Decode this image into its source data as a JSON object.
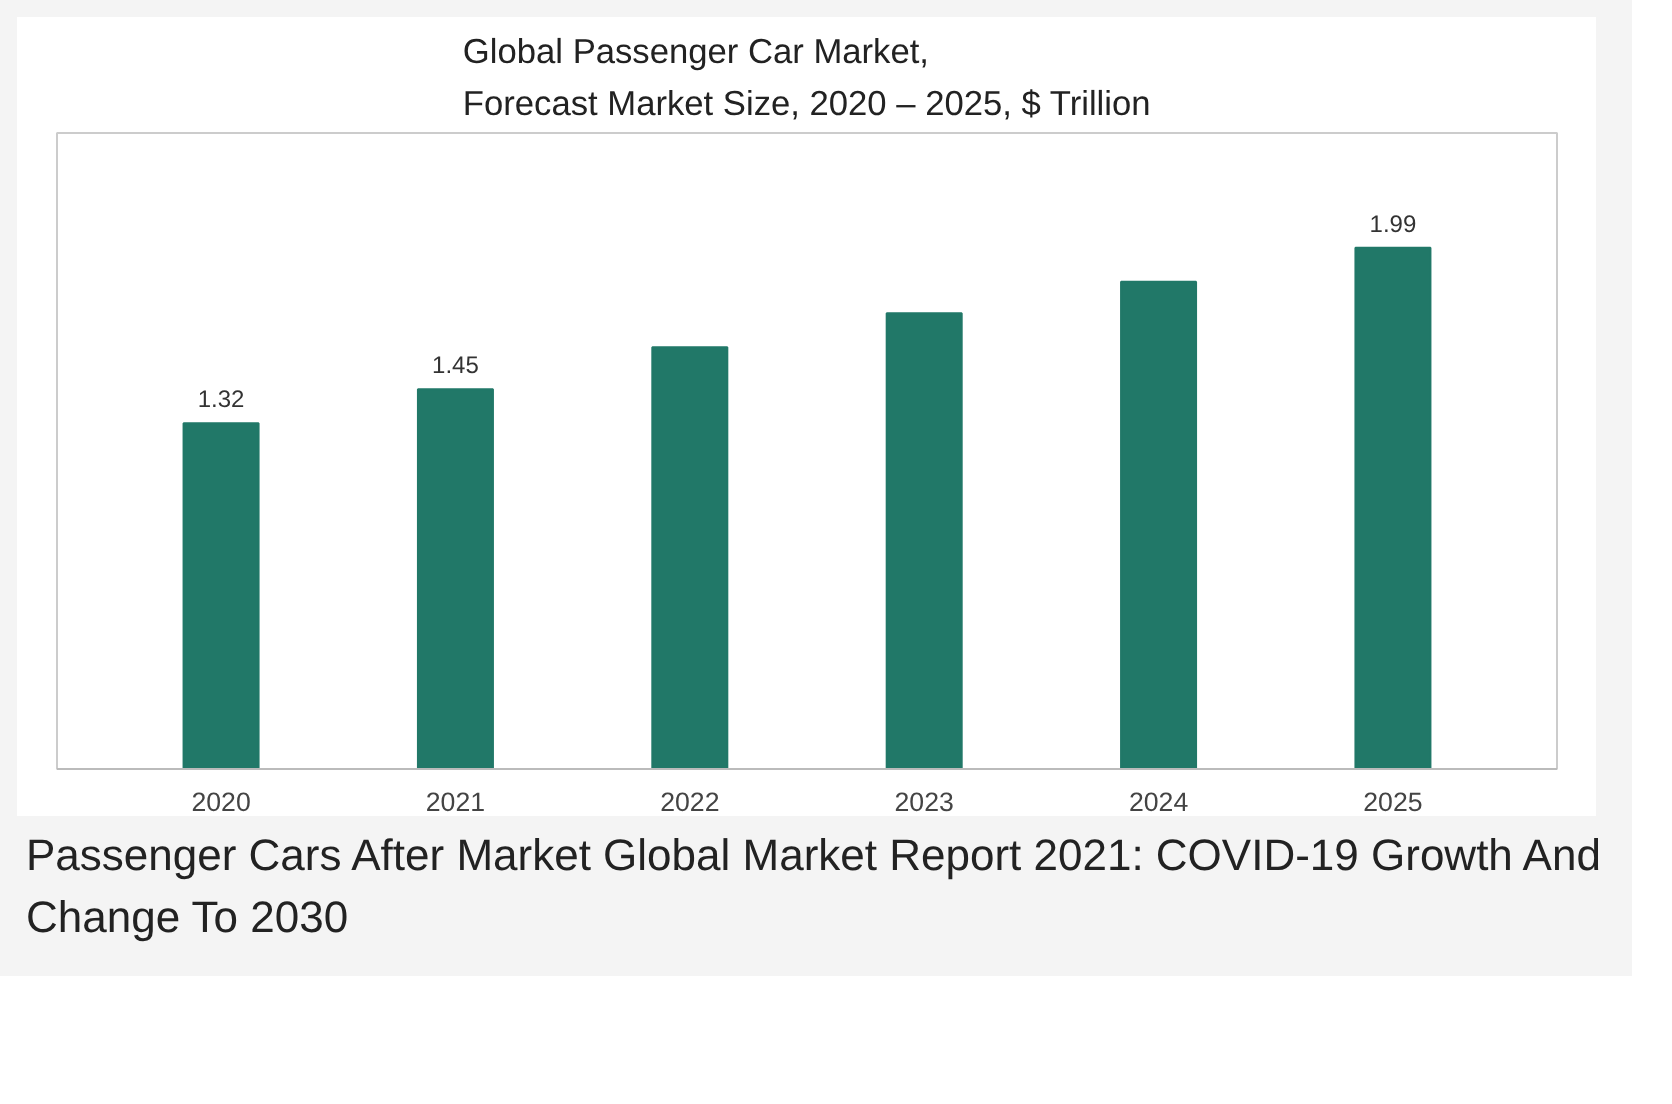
{
  "chart_data": {
    "type": "bar",
    "title": "Global Passenger Car Market,\nForecast Market Size, 2020 – 2025, $ Trillion",
    "categories": [
      "2020",
      "2021",
      "2022",
      "2023",
      "2024",
      "2025"
    ],
    "values": [
      1.32,
      1.45,
      1.61,
      1.74,
      1.86,
      1.99
    ],
    "value_labels": [
      "1.32",
      "1.45",
      null,
      null,
      null,
      "1.99"
    ],
    "color": "#217868",
    "grid": false,
    "annotations": [
      "Passenger Cars After Market Global Market Report 2021: COVID-19 Growth And Change To 2030"
    ]
  }
}
